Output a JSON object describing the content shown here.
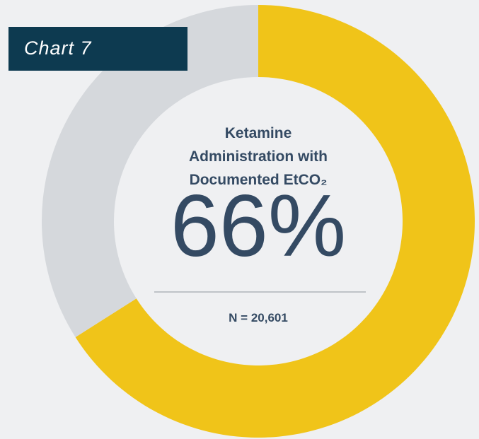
{
  "chart_data": {
    "type": "donut",
    "chart_label": "Chart 7",
    "title": "Ketamine Administration with Documented EtCO₂",
    "values": [
      66,
      34
    ],
    "value_labels": [
      "66%",
      null
    ],
    "colors": [
      "#f0c419",
      "#d5d8dc"
    ],
    "annotation": "N = 20,601"
  }
}
